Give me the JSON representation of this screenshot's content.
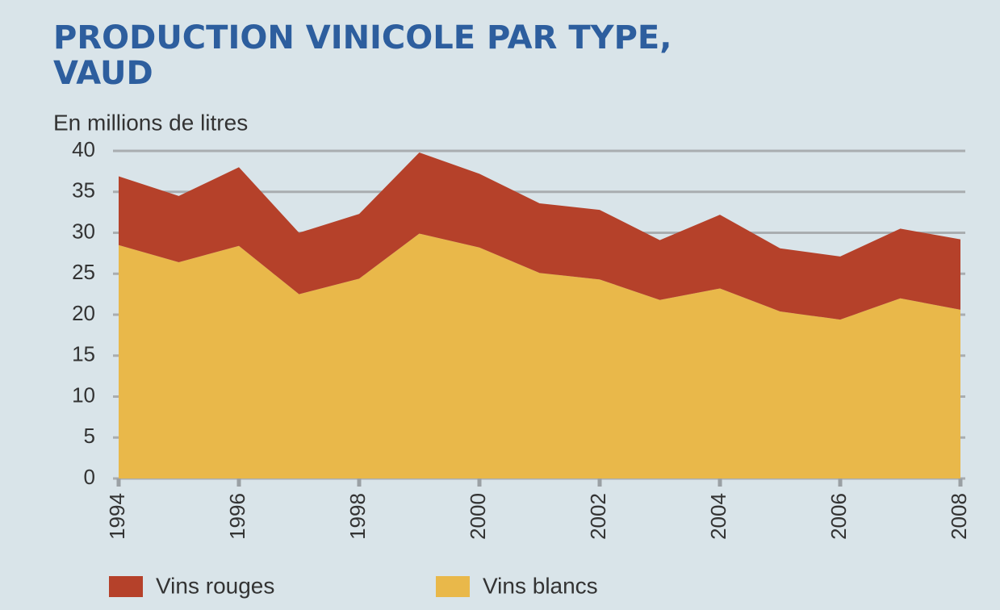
{
  "chart_data": {
    "type": "stacked_area",
    "title": "PRODUCTION VINICOLE PAR TYPE,",
    "title_line2": "VAUD",
    "y_label": "En millions de litres",
    "x": [
      1994,
      1995,
      1996,
      1997,
      1998,
      1999,
      2000,
      2001,
      2002,
      2003,
      2004,
      2005,
      2006,
      2007,
      2008
    ],
    "series": [
      {
        "name": "Vins rouges",
        "color": "#b5412a",
        "values": [
          8.4,
          8.1,
          9.6,
          7.5,
          7.9,
          9.9,
          9.0,
          8.5,
          8.5,
          7.3,
          9.0,
          7.7,
          7.7,
          8.5,
          8.6
        ]
      },
      {
        "name": "Vins blancs",
        "color": "#e9b84a",
        "values": [
          28.5,
          26.4,
          28.4,
          22.5,
          24.4,
          29.9,
          28.2,
          25.1,
          24.3,
          21.8,
          23.2,
          20.4,
          19.4,
          22.0,
          20.6
        ]
      }
    ],
    "xlim": [
      1994,
      2008
    ],
    "xticks": [
      1994,
      1996,
      1998,
      2000,
      2002,
      2004,
      2006,
      2008
    ],
    "ylim": [
      0,
      40
    ],
    "yticks": [
      0,
      5,
      10,
      15,
      20,
      25,
      30,
      35,
      40
    ],
    "grid": true,
    "legend": "bottom"
  }
}
